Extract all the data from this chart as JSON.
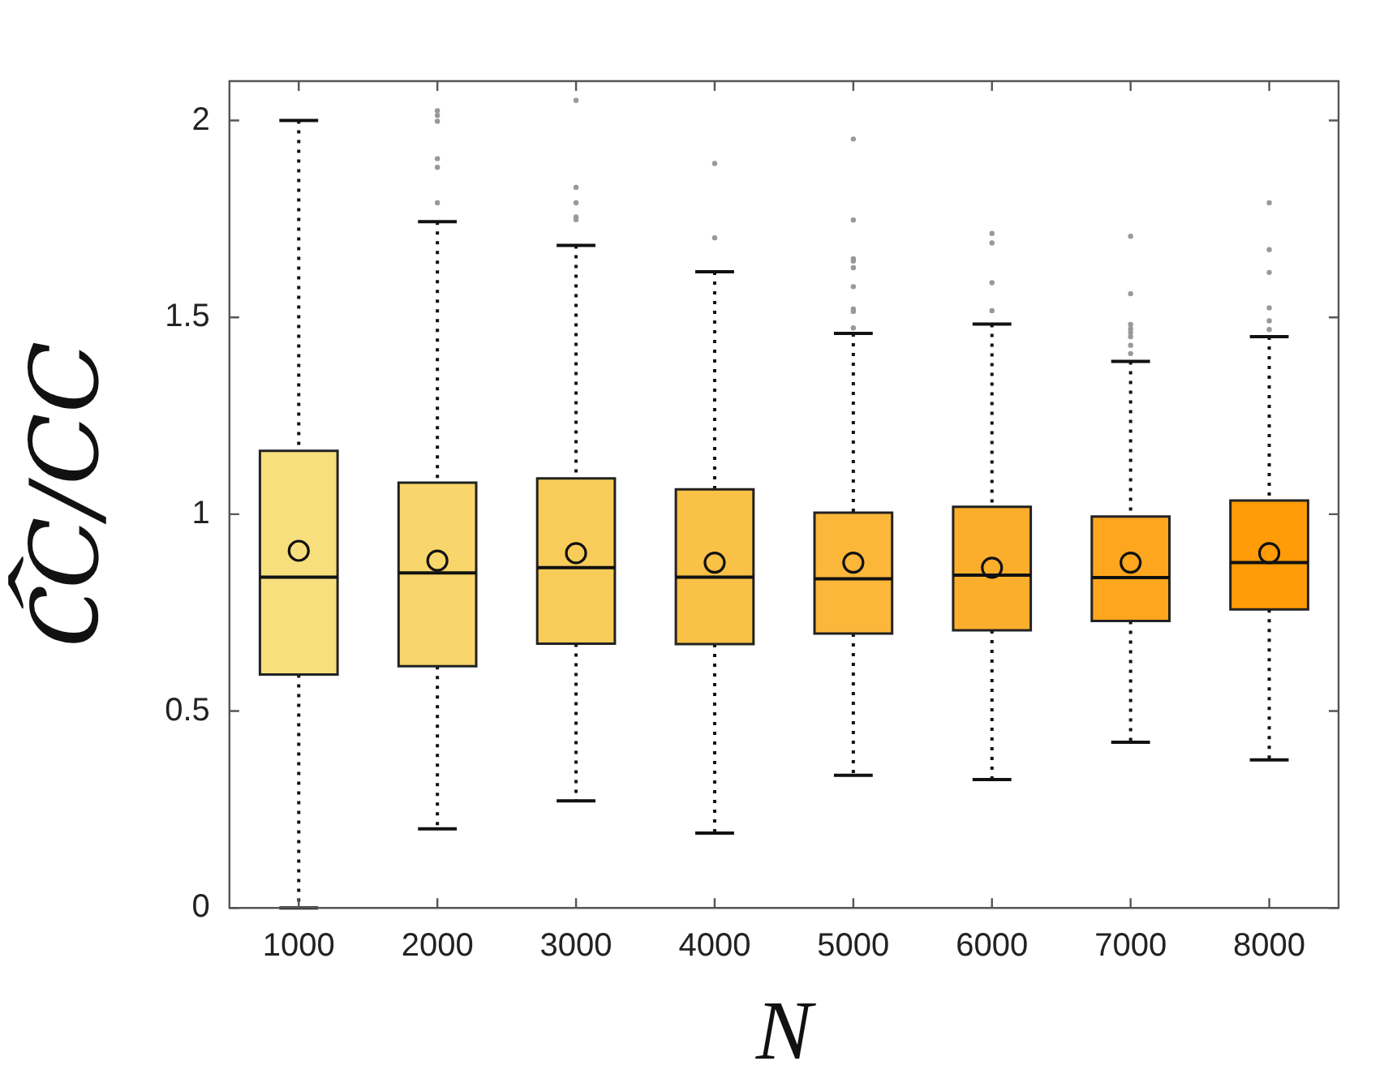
{
  "chart_data": {
    "type": "box",
    "xlabel": "N",
    "ylabel": "C᷍C/CC",
    "categories": [
      "1000",
      "2000",
      "3000",
      "4000",
      "5000",
      "6000",
      "7000",
      "8000"
    ],
    "colors": [
      "#f8df7e",
      "#f8d66b",
      "#f8cc58",
      "#f9c146",
      "#fbb73a",
      "#fbad2c",
      "#fda61e",
      "#ff9c08"
    ],
    "boxes": [
      {
        "low": 0,
        "q1": 0.593,
        "median": 0.84,
        "q3": 1.161,
        "high": 2.0,
        "mean": 0.907
      },
      {
        "low": 0.201,
        "q1": 0.614,
        "median": 0.851,
        "q3": 1.08,
        "high": 1.743,
        "mean": 0.882,
        "outliers": [
          2.025,
          2.013,
          1.998,
          1.903,
          1.881,
          1.791
        ]
      },
      {
        "low": 0.272,
        "q1": 0.671,
        "median": 0.864,
        "q3": 1.091,
        "high": 1.683,
        "mean": 0.901,
        "outliers": [
          2.051,
          1.83,
          1.791,
          1.755,
          1.748
        ]
      },
      {
        "low": 0.19,
        "q1": 0.67,
        "median": 0.84,
        "q3": 1.063,
        "high": 1.616,
        "mean": 0.877,
        "outliers": [
          1.891,
          1.702
        ]
      },
      {
        "low": 0.337,
        "q1": 0.697,
        "median": 0.836,
        "q3": 1.004,
        "high": 1.459,
        "mean": 0.877,
        "outliers": [
          1.953,
          1.747,
          1.649,
          1.643,
          1.626,
          1.578,
          1.521,
          1.515,
          1.473
        ]
      },
      {
        "low": 0.326,
        "q1": 0.705,
        "median": 0.845,
        "q3": 1.019,
        "high": 1.483,
        "mean": 0.864,
        "outliers": [
          1.713,
          1.689,
          1.588,
          1.517
        ]
      },
      {
        "low": 0.421,
        "q1": 0.729,
        "median": 0.839,
        "q3": 0.994,
        "high": 1.388,
        "mean": 0.877,
        "outliers": [
          1.706,
          1.56,
          1.482,
          1.471,
          1.462,
          1.451,
          1.429,
          1.408
        ]
      },
      {
        "low": 0.376,
        "q1": 0.758,
        "median": 0.877,
        "q3": 1.035,
        "high": 1.451,
        "mean": 0.901,
        "outliers": [
          1.791,
          1.672,
          1.614,
          1.524,
          1.491,
          1.469
        ]
      }
    ],
    "ylim": [
      0,
      2.1
    ],
    "yticks": [
      0,
      0.5,
      1,
      1.5,
      2
    ],
    "grid": false,
    "legend": false
  }
}
